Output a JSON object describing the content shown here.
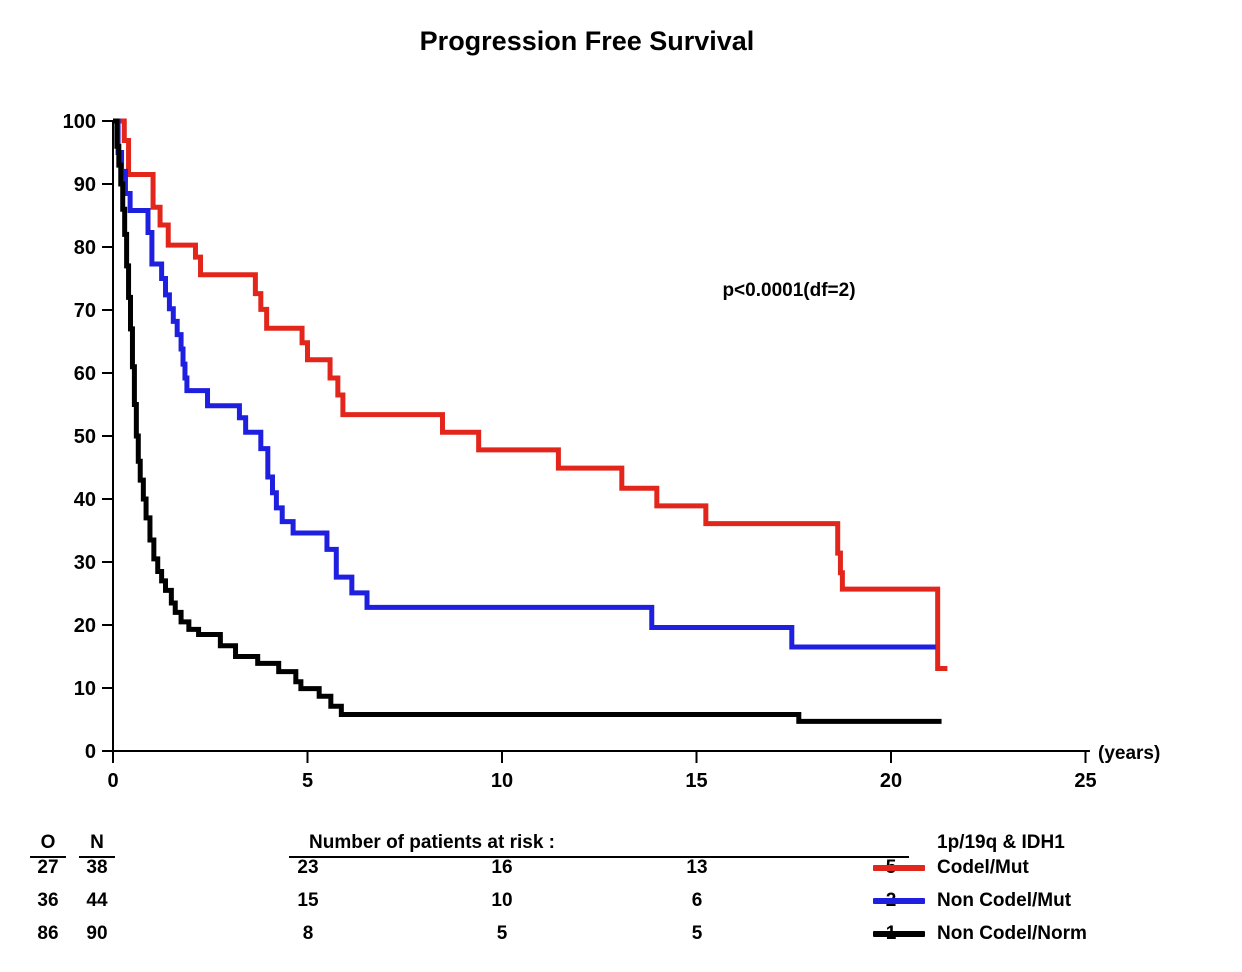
{
  "title": "Progression Free Survival",
  "chart_data": {
    "type": "line",
    "subtype": "kaplan-meier-step-curves",
    "title": "Progression Free Survival",
    "annotation": "p<0.0001(df=2)",
    "xlabel": "(years)",
    "ylabel": "",
    "xlim": [
      0,
      25.3
    ],
    "ylim": [
      0,
      100
    ],
    "x_ticks": [
      0,
      5,
      10,
      15,
      20,
      25
    ],
    "y_ticks": [
      0,
      10,
      20,
      30,
      40,
      50,
      60,
      70,
      80,
      90,
      100
    ],
    "grid": false,
    "legend_position": "bottom-right",
    "legend_title": "1p/19q & IDH1",
    "series": [
      {
        "name": "Codel/Mut",
        "color": "#e2261c",
        "end": 21.45,
        "steps": [
          [
            0,
            100
          ],
          [
            0.29,
            96.9
          ],
          [
            0.4,
            91.5
          ],
          [
            1.03,
            86.3
          ],
          [
            1.21,
            83.5
          ],
          [
            1.42,
            80.3
          ],
          [
            2.12,
            78.4
          ],
          [
            2.25,
            75.6
          ],
          [
            3.66,
            72.6
          ],
          [
            3.8,
            70.1
          ],
          [
            3.95,
            67.1
          ],
          [
            4.86,
            64.8
          ],
          [
            5.0,
            62.1
          ],
          [
            5.58,
            59.2
          ],
          [
            5.78,
            56.5
          ],
          [
            5.91,
            53.4
          ],
          [
            8.47,
            50.6
          ],
          [
            9.4,
            47.8
          ],
          [
            11.45,
            44.9
          ],
          [
            13.08,
            41.7
          ],
          [
            13.98,
            38.9
          ],
          [
            15.24,
            36.1
          ],
          [
            18.63,
            31.4
          ],
          [
            18.7,
            28.3
          ],
          [
            18.75,
            25.7
          ],
          [
            21.2,
            13.1
          ]
        ]
      },
      {
        "name": "Non Codel/Mut",
        "color": "#1f1fe0",
        "end": 21.15,
        "steps": [
          [
            0,
            100
          ],
          [
            0.13,
            95.0
          ],
          [
            0.22,
            92.0
          ],
          [
            0.32,
            88.5
          ],
          [
            0.44,
            85.8
          ],
          [
            0.9,
            82.3
          ],
          [
            1.0,
            77.3
          ],
          [
            1.25,
            75.0
          ],
          [
            1.35,
            72.4
          ],
          [
            1.45,
            70.2
          ],
          [
            1.55,
            68.2
          ],
          [
            1.65,
            66.1
          ],
          [
            1.75,
            63.8
          ],
          [
            1.8,
            61.4
          ],
          [
            1.85,
            59.2
          ],
          [
            1.9,
            57.2
          ],
          [
            2.43,
            54.8
          ],
          [
            3.25,
            52.9
          ],
          [
            3.41,
            50.6
          ],
          [
            3.8,
            48.0
          ],
          [
            3.98,
            43.5
          ],
          [
            4.1,
            41.0
          ],
          [
            4.2,
            38.6
          ],
          [
            4.35,
            36.4
          ],
          [
            4.63,
            34.6
          ],
          [
            5.5,
            32.0
          ],
          [
            5.74,
            27.6
          ],
          [
            6.14,
            25.1
          ],
          [
            6.53,
            22.8
          ],
          [
            13.85,
            19.6
          ],
          [
            17.45,
            16.5
          ]
        ]
      },
      {
        "name": "Non Codel/Norm",
        "color": "#000000",
        "end": 21.3,
        "steps": [
          [
            0,
            100
          ],
          [
            0.1,
            96
          ],
          [
            0.15,
            93
          ],
          [
            0.2,
            90
          ],
          [
            0.25,
            86
          ],
          [
            0.3,
            82
          ],
          [
            0.35,
            77
          ],
          [
            0.4,
            72
          ],
          [
            0.45,
            67
          ],
          [
            0.5,
            61
          ],
          [
            0.55,
            55
          ],
          [
            0.6,
            50
          ],
          [
            0.65,
            46
          ],
          [
            0.7,
            43
          ],
          [
            0.78,
            40
          ],
          [
            0.85,
            37
          ],
          [
            0.95,
            33.5
          ],
          [
            1.05,
            30.5
          ],
          [
            1.15,
            28.5
          ],
          [
            1.25,
            27.0
          ],
          [
            1.35,
            25.5
          ],
          [
            1.5,
            23.5
          ],
          [
            1.6,
            22.0
          ],
          [
            1.75,
            20.5
          ],
          [
            1.95,
            19.3
          ],
          [
            2.2,
            18.5
          ],
          [
            2.76,
            16.7
          ],
          [
            3.15,
            15.0
          ],
          [
            3.72,
            13.9
          ],
          [
            4.26,
            12.6
          ],
          [
            4.7,
            11.0
          ],
          [
            4.83,
            9.9
          ],
          [
            5.3,
            8.7
          ],
          [
            5.6,
            7.1
          ],
          [
            5.87,
            5.8
          ],
          [
            17.63,
            4.7
          ]
        ]
      }
    ]
  },
  "risk_table": {
    "o_header": "O",
    "n_header": "N",
    "title": "Number of patients at risk :",
    "legend_title": "1p/19q & IDH1",
    "time_points": [
      5,
      10,
      15,
      20
    ],
    "rows": [
      {
        "o": "27",
        "n": "38",
        "at_risk": [
          "23",
          "16",
          "13",
          "5"
        ],
        "label": "Codel/Mut",
        "color": "#e2261c"
      },
      {
        "o": "36",
        "n": "44",
        "at_risk": [
          "15",
          "10",
          "6",
          "2"
        ],
        "label": "Non Codel/Mut",
        "color": "#1f1fe0"
      },
      {
        "o": "86",
        "n": "90",
        "at_risk": [
          "8",
          "5",
          "5",
          "1"
        ],
        "label": "Non Codel/Norm",
        "color": "#000000"
      }
    ]
  }
}
